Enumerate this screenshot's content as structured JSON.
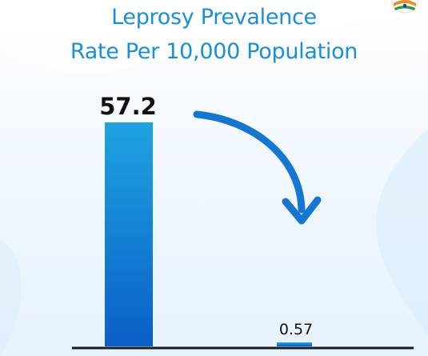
{
  "header": {
    "title_line1": "Leprosy Prevalence",
    "title_line2": "Rate Per 10,000 Population"
  },
  "colors": {
    "title": "#1a8fd6",
    "bar_top": "#1fa3e2",
    "bar_bottom": "#0a5fc7",
    "arrow": "#1677d2",
    "baseline": "#1b1b1b",
    "value_text": "#111111"
  },
  "icons": {
    "logo": "tricolor-badge-icon",
    "arrow": "curved-down-arrow-icon"
  },
  "chart_data": {
    "type": "bar",
    "title": "Leprosy Prevalence Rate Per 10,000 Population",
    "categories": [
      "",
      ""
    ],
    "values": [
      57.2,
      0.57
    ],
    "value_labels": [
      "57.2",
      "0.57"
    ],
    "ylim": [
      0,
      60
    ],
    "grid": false,
    "legend": "none",
    "xlabel": "",
    "ylabel": ""
  }
}
